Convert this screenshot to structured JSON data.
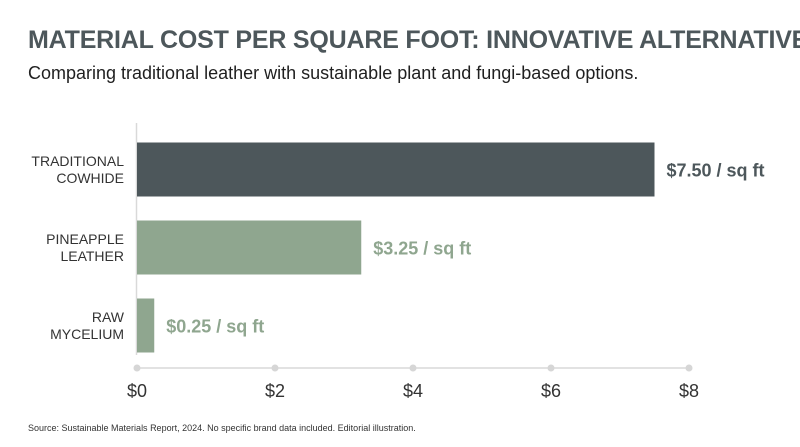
{
  "header": {
    "title": "MATERIAL COST PER SQUARE FOOT: INNOVATIVE ALTERNATIVES",
    "subtitle": "Comparing traditional leather with sustainable plant and fungi-based options."
  },
  "footer": {
    "source": "Source: Sustainable Materials Report, 2024. No specific brand data included. Editorial illustration."
  },
  "chart_data": {
    "type": "bar",
    "orientation": "horizontal",
    "categories": [
      [
        "TRADITIONAL",
        "COWHIDE"
      ],
      [
        "PINEAPPLE",
        "LEATHER"
      ],
      [
        "RAW",
        "MYCELIUM"
      ]
    ],
    "values": [
      7.5,
      3.25,
      0.25
    ],
    "data_labels": [
      "$7.50 / sq ft",
      "$3.25 / sq ft",
      "$0.25 / sq ft"
    ],
    "colors": [
      "#4d575b",
      "#8fa68f",
      "#8fa68f"
    ],
    "label_colors": [
      "#4d575b",
      "#8fa68f",
      "#8fa68f"
    ],
    "xlim": [
      0,
      8
    ],
    "xticks": [
      0,
      2,
      4,
      6,
      8
    ],
    "xtick_labels": [
      "$0",
      "$2",
      "$4",
      "$6",
      "$8"
    ],
    "axis_color": "#d9d9d9",
    "grid": false,
    "legend": "none"
  }
}
